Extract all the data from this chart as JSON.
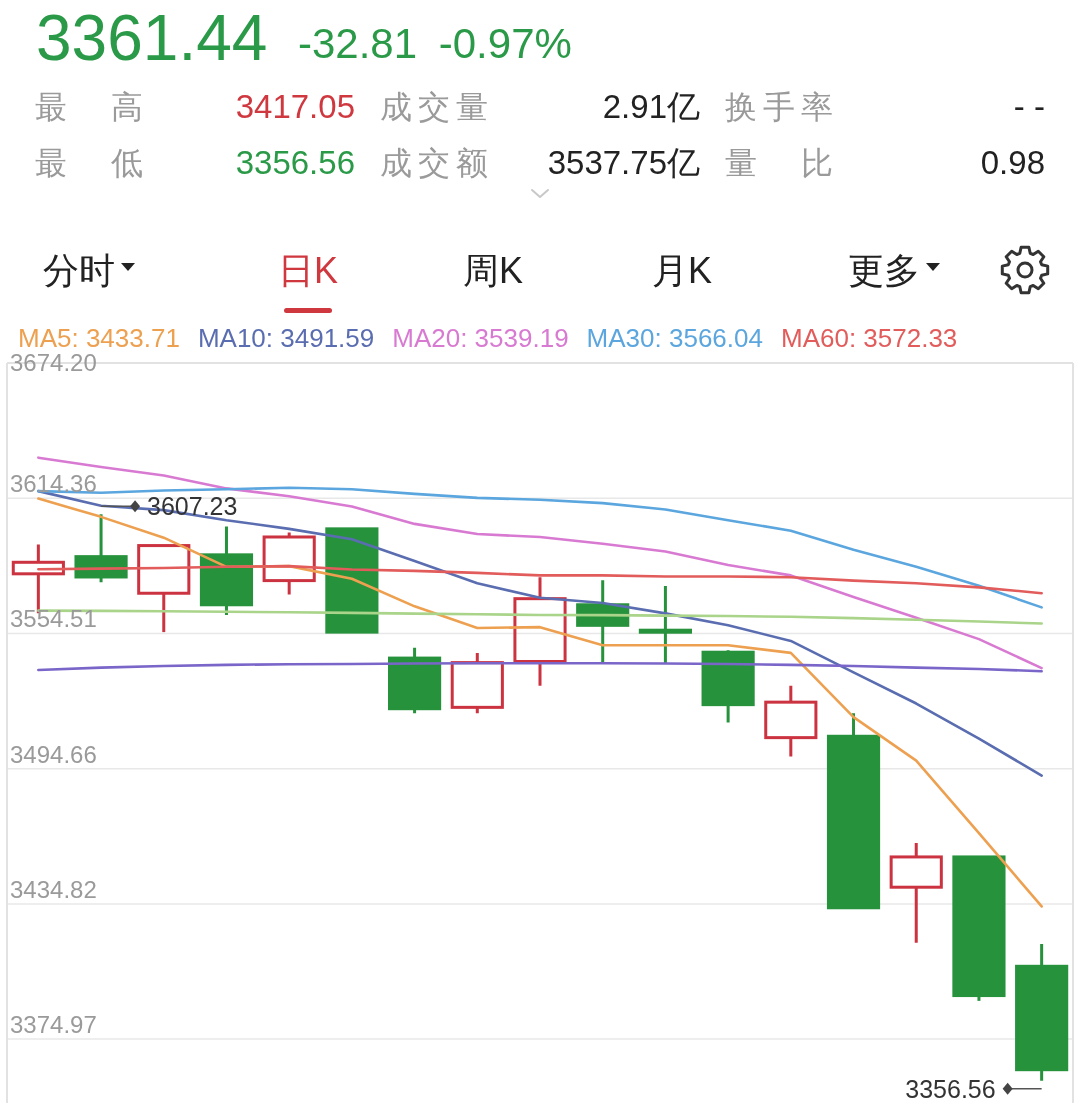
{
  "chart_data": {
    "type": "candlestick",
    "title": "3361.44",
    "subtitle": "-32.81 -0.97%",
    "annotations": [
      "最高",
      "3417.05",
      "成交量",
      "2.91亿",
      "换手率",
      "- -",
      "最低",
      "3356.56",
      "成交额",
      "3537.75亿",
      "量比",
      "0.98",
      "分时",
      "日K",
      "周K",
      "月K",
      "更多",
      {
        "text": "3607.23",
        "y": 3607.23
      },
      "3356.56"
    ],
    "categories": [
      null,
      null,
      null,
      null,
      null,
      null,
      null,
      null,
      null,
      null,
      null,
      null,
      null,
      null,
      null,
      null,
      null
    ],
    "ohlc": [
      [
        3580.9,
        3593.9,
        3563.4,
        3586.0
      ],
      [
        3588.5,
        3607.23,
        3577.2,
        3579.5
      ],
      [
        3572.3,
        3593.4,
        3555.1,
        3593.4
      ],
      [
        3589.3,
        3601.8,
        3562.7,
        3567.2
      ],
      [
        3577.9,
        3599.2,
        3571.8,
        3597.2
      ],
      [
        3600.8,
        3600.8,
        3555.1,
        3555.1
      ],
      [
        3543.6,
        3548.2,
        3519.2,
        3521.2
      ],
      [
        3521.8,
        3545.9,
        3519.2,
        3541.6
      ],
      [
        3542.1,
        3579.4,
        3531.4,
        3569.9
      ],
      [
        3567.2,
        3578.0,
        3541.3,
        3558.1
      ],
      [
        3555.5,
        3575.5,
        3541.3,
        3555.5
      ],
      [
        3546.2,
        3547.1,
        3515.1,
        3523.0
      ],
      [
        3508.4,
        3531.4,
        3500.1,
        3524.1
      ],
      [
        3509.0,
        3519.2,
        3433.1,
        3433.1
      ],
      [
        3442.2,
        3461.8,
        3417.6,
        3455.6
      ],
      [
        3455.6,
        3455.6,
        3391.9,
        3394.25
      ],
      [
        3407.2,
        3417.05,
        3356.56,
        3361.44
      ]
    ],
    "colors": [
      "#cc3340",
      "#27923c",
      "#cc3340",
      "#27923c",
      "#cc3340",
      "#27923c",
      "#27923c",
      "#cc3340",
      "#cc3340",
      "#27923c",
      "#27923c",
      "#27923c",
      "#cc3340",
      "#27923c",
      "#cc3340",
      "#27923c",
      "#27923c"
    ],
    "series": [
      {
        "name": "MA5: 3433.71",
        "type": "line",
        "color": "#eda050",
        "values": [
          3614.2,
          3606.1,
          3596.9,
          3584.0,
          3584.3,
          3578.7,
          3566.5,
          3556.9,
          3557.3,
          3549.3,
          3549.3,
          3549.3,
          3545.9,
          3517.5,
          3498.2,
          3466.1,
          3433.71
        ]
      },
      {
        "name": "MA10: 3491.59",
        "type": "line",
        "color": "#5a6db0",
        "values": [
          3617.5,
          3611.0,
          3609.1,
          3604.6,
          3600.8,
          3596.2,
          3586.6,
          3576.7,
          3570.3,
          3568.0,
          3563.4,
          3558.1,
          3551.2,
          3537.3,
          3523.5,
          3508.0,
          3491.59
        ]
      },
      {
        "name": "MA20: 3539.19",
        "type": "line",
        "color": "#d87ad2",
        "values": [
          3632.3,
          3628.2,
          3624.4,
          3618.7,
          3615.2,
          3610.7,
          3603.0,
          3598.5,
          3597.2,
          3594.2,
          3590.8,
          3584.8,
          3580.2,
          3570.6,
          3561.5,
          3552.0,
          3539.19
        ]
      },
      {
        "name": "MA30: 3566.04",
        "type": "line",
        "color": "#5ba6de",
        "values": [
          3617.5,
          3616.8,
          3617.8,
          3618.3,
          3619.0,
          3618.3,
          3616.3,
          3614.5,
          3613.7,
          3612.2,
          3609.4,
          3604.6,
          3600.0,
          3591.6,
          3584.0,
          3575.6,
          3566.04
        ]
      },
      {
        "name": "MA60: 3572.33",
        "type": "line",
        "color": "#e25c5c",
        "values": [
          3582.9,
          3583.2,
          3583.5,
          3584.0,
          3584.3,
          3582.8,
          3582.2,
          3581.3,
          3580.2,
          3580.2,
          3579.7,
          3579.7,
          3579.4,
          3577.9,
          3576.7,
          3574.9,
          3572.33
        ]
      },
      {
        "type": "line",
        "color": "#a9d48a",
        "values": [
          3564.6,
          3564.5,
          3564.3,
          3564.1,
          3563.9,
          3563.6,
          3563.3,
          3563.0,
          3562.7,
          3562.6,
          3562.4,
          3562.2,
          3561.9,
          3561.3,
          3560.6,
          3559.8,
          3558.9
        ]
      },
      {
        "type": "line",
        "color": "#7a66c9",
        "values": [
          3538.3,
          3539.4,
          3540.1,
          3540.6,
          3540.9,
          3541.0,
          3541.2,
          3541.3,
          3541.3,
          3541.3,
          3541.2,
          3541.0,
          3540.6,
          3540.1,
          3539.4,
          3538.8,
          3537.8
        ]
      }
    ],
    "ylim": [
      3346.7,
      3674.2
    ],
    "yticks": [
      {
        "value": 3674.2,
        "label": "3674.20"
      },
      3614.36,
      3554.51,
      3494.66,
      3434.82,
      3374.97
    ],
    "grid": "y",
    "legend": "top left"
  }
}
